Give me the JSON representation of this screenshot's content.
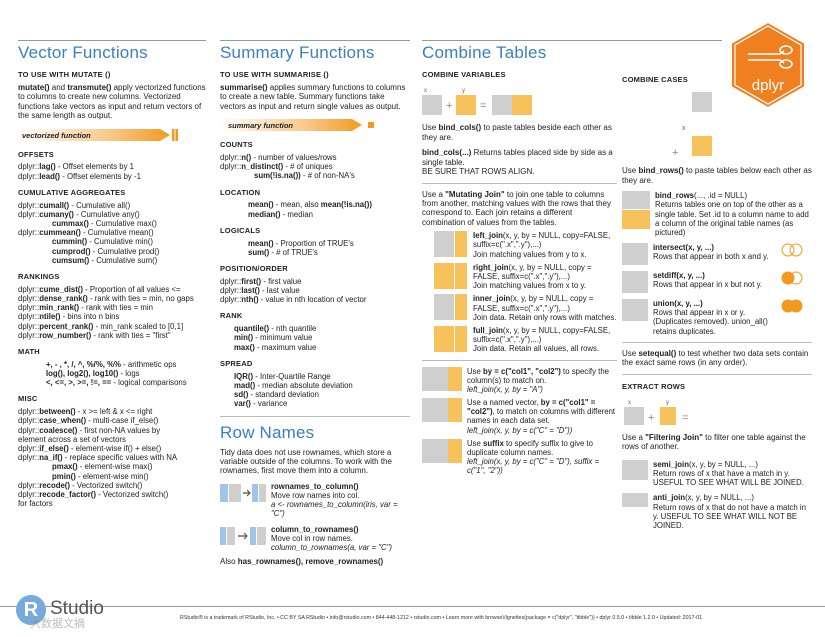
{
  "col1": {
    "title": "Vector Functions",
    "subtitle": "TO USE WITH MUTATE ()",
    "intro_b1": "mutate()",
    "intro_t1": " and ",
    "intro_b2": "transmute()",
    "intro_t2": " apply vectorized functions to columns to create new columns. Vectorized functions take vectors as input and return vectors of the same length as output.",
    "tag": "vectorized function",
    "offsets": {
      "head": "OFFSETS",
      "items": [
        {
          "fn": "lag()",
          "pre": "dplyr::",
          "desc": " - Offset elements by 1"
        },
        {
          "fn": "lead()",
          "pre": "dplyr::",
          "desc": " - Offset elements by -1"
        }
      ]
    },
    "cumulative": {
      "head": "CUMULATIVE AGGREGATES",
      "items": [
        {
          "pre": "dplyr::",
          "fn": "cumall()",
          "desc": " - Cumulative all()",
          "indent": 0
        },
        {
          "pre": "dplyr::",
          "fn": "cumany()",
          "desc": " - Cumulative any()",
          "indent": 0
        },
        {
          "pre": "",
          "fn": "cummax()",
          "desc": " - Cumulative max()",
          "indent": 2
        },
        {
          "pre": "dplyr::",
          "fn": "cummean()",
          "desc": " - Cumulative mean()",
          "indent": 0
        },
        {
          "pre": "",
          "fn": "cummin()",
          "desc": " - Cumulative min()",
          "indent": 2
        },
        {
          "pre": "",
          "fn": "cumprod()",
          "desc": " - Cumulative prod()",
          "indent": 2
        },
        {
          "pre": "",
          "fn": "cumsum()",
          "desc": " - Cumulative sum()",
          "indent": 2
        }
      ]
    },
    "rankings": {
      "head": "RANKINGS",
      "items": [
        {
          "pre": "dplyr::",
          "fn": "cume_dist()",
          "desc": " - Proportion of all values <="
        },
        {
          "pre": "dplyr::",
          "fn": "dense_rank()",
          "desc": " - rank with ties = min, no gaps"
        },
        {
          "pre": "dplyr::",
          "fn": "min_rank()",
          "desc": " - rank with ties = min"
        },
        {
          "pre": "dplyr::",
          "fn": "ntile()",
          "desc": " - bins into n bins"
        },
        {
          "pre": "dplyr::",
          "fn": "percent_rank()",
          "desc": " - min_rank scaled to [0,1]"
        },
        {
          "pre": "dplyr::",
          "fn": "row_number()",
          "desc": " - rank with ties = \"first\""
        }
      ]
    },
    "math": {
      "head": "MATH",
      "items": [
        {
          "fn": "+, - , *, /, ^, %/%, %%",
          "desc": " - arithmetic ops"
        },
        {
          "fn": "log(), log2(), log10()",
          "desc": " - logs"
        },
        {
          "fn": "<, <=, >, >=, !=, ==",
          "desc": " - logical comparisons"
        }
      ]
    },
    "misc": {
      "head": "MISC",
      "items": [
        {
          "pre": "dplyr::",
          "fn": "between()",
          "desc": " - x >= left & x <= right",
          "indent": 0
        },
        {
          "pre": "dplyr::",
          "fn": "case_when()",
          "desc": " - multi-case if_else()",
          "indent": 0
        },
        {
          "pre": "dplyr::",
          "fn": "coalesce()",
          "desc": " - first non-NA values by",
          "indent": 0
        },
        {
          "pre": "",
          "fn": "",
          "desc": "element  across a set of vectors",
          "indent": 0
        },
        {
          "pre": "dplyr::",
          "fn": "if_else()",
          "desc": " - element-wise if() + else()",
          "indent": 0
        },
        {
          "pre": "dplyr::",
          "fn": "na_if()",
          "desc": " - replace specific values with NA",
          "indent": 0
        },
        {
          "pre": "",
          "fn": "pmax()",
          "desc": " - element-wise max()",
          "indent": 2
        },
        {
          "pre": "",
          "fn": "pmin()",
          "desc": " - element-wise min()",
          "indent": 2
        },
        {
          "pre": "dplyr::",
          "fn": "recode()",
          "desc": " - Vectorized switch()",
          "indent": 0
        },
        {
          "pre": "dplyr::",
          "fn": "recode_factor()",
          "desc": " - Vectorized switch()",
          "indent": 0
        },
        {
          "pre": "",
          "fn": "",
          "desc": "for factors",
          "indent": 0
        }
      ]
    }
  },
  "col2": {
    "title": "Summary Functions",
    "subtitle": "TO USE WITH SUMMARISE ()",
    "intro_b1": "summarise()",
    "intro_t1": " applies summary functions to columns to create a new table. Summary functions take vectors as input and return single values as output.",
    "tag": "summary function",
    "counts": {
      "head": "COUNTS",
      "items": [
        {
          "pre": "dplyr::",
          "fn": "n()",
          "desc": " - number of values/rows",
          "indent": 0
        },
        {
          "pre": "dplyr::",
          "fn": "n_distinct()",
          "desc": " - # of uniques",
          "indent": 0
        },
        {
          "pre": "",
          "fn": "sum(!is.na())",
          "desc": " - # of non-NA's",
          "indent": 2
        }
      ]
    },
    "location": {
      "head": "LOCATION",
      "items": [
        {
          "pre": "",
          "fn": "mean()",
          "desc": " - mean, also ",
          "fn2": "mean(!is.na())",
          "indent": 1
        },
        {
          "pre": "",
          "fn": "median()",
          "desc": " - median",
          "indent": 1
        }
      ]
    },
    "logicals": {
      "head": "LOGICALS",
      "items": [
        {
          "pre": "",
          "fn": "mean()",
          "desc": " - Proportion of TRUE's",
          "indent": 1
        },
        {
          "pre": "",
          "fn": "sum()",
          "desc": " - # of TRUE's",
          "indent": 1
        }
      ]
    },
    "position": {
      "head": "POSITION/ORDER",
      "items": [
        {
          "pre": "dplyr::",
          "fn": "first()",
          "desc": " - first value"
        },
        {
          "pre": "dplyr::",
          "fn": "last()",
          "desc": " - last value"
        },
        {
          "pre": "dplyr::",
          "fn": "nth()",
          "desc": " - value in nth location of vector"
        }
      ]
    },
    "rank": {
      "head": "RANK",
      "items": [
        {
          "fn": "quantile()",
          "desc": " - nth quantile"
        },
        {
          "fn": "min()",
          "desc": " - minimum value"
        },
        {
          "fn": "max()",
          "desc": " - maximum value"
        }
      ]
    },
    "spread": {
      "head": "SPREAD",
      "items": [
        {
          "fn": "IQR()",
          "desc": " - Inter-Quartile Range"
        },
        {
          "fn": "mad()",
          "desc": " - median absolute deviation"
        },
        {
          "fn": "sd()",
          "desc": " - standard deviation"
        },
        {
          "fn": "var()",
          "desc": " - variance"
        }
      ]
    },
    "rownames": {
      "title": "Row Names",
      "intro": "Tidy data does not use rownames, which store a variable outside of the columns. To work with the rownames, first move them into a column.",
      "f1": "rownames_to_column()",
      "f1d": "Move row names into col.",
      "f1e": "a <- rownames_to_column(iris, var = \"C\")",
      "f2": "column_to_rownames()",
      "f2d": "Move col in row names.",
      "f2e": "column_to_rownames(a, var = \"C\")",
      "also_t": "Also ",
      "also_b": "has_rownames(), remove_rownames()"
    }
  },
  "col3": {
    "title": "Combine Tables",
    "combine_vars": "COMBINE VARIABLES",
    "bind_cols_t1": "Use ",
    "bind_cols_b": "bind_cols()",
    "bind_cols_t2": " to paste tables beside each other as they are.",
    "bind_cols2_b": "bind_cols(...)",
    "bind_cols2_t": " Returns tables placed side by side as a single table.",
    "bind_cols2_t2": "BE SURE THAT ROWS ALIGN.",
    "mut_join_t1": "Use a ",
    "mut_join_b": "\"Mutating Join\"",
    "mut_join_t2": " to join one table to columns from another, matching values with the rows that they correspond to. Each join retains a different combination of values from the tables.",
    "joins": [
      {
        "name": "left_join",
        "sig": "(x, y, by = NULL, copy=FALSE, suffix=c(\".x\",\".y\"),...)",
        "desc": "Join matching values from y to x."
      },
      {
        "name": "right_join",
        "sig": "(x, y, by = NULL, copy = FALSE, suffix=c(\".x\",\".y\"),...)",
        "desc": "Join matching values from x to y."
      },
      {
        "name": "inner_join",
        "sig": "(x, y, by = NULL, copy = FALSE, suffix=c(\".x\",\".y\"),...)",
        "desc": "Join data. Retain only rows with matches."
      },
      {
        "name": "full_join",
        "sig": "(x, y, by = NULL, copy=FALSE, suffix=c(\".x\",\".y\"),...)",
        "desc": "Join data. Retain all values, all rows."
      }
    ],
    "by1_t1": "Use ",
    "by1_b": "by = c(\"col1\", \"col2\")",
    "by1_t2": " to specify the column(s) to match on.",
    "by1_e": "left_join(x, y, by = \"A\")",
    "by2_t1": "Use a named vector, ",
    "by2_b": "by = c(\"col1\" = \"col2\")",
    "by2_t2": ", to match on columns with different names in each data set.",
    "by2_e": "left_join(x, y, by = c(\"C\" = \"D\"))",
    "suf_t1": "Use ",
    "suf_b": "suffix",
    "suf_t2": " to specify suffix to give to duplicate column names.",
    "suf_e": "left_join(x, y, by = c(\"C\" = \"D\"), suffix = c(\"1\", \"2\"))"
  },
  "col4": {
    "combine_cases": "COMBINE CASES",
    "bind_rows_t1": "Use ",
    "bind_rows_b": "bind_rows()",
    "bind_rows_t2": " to paste tables below each other as they are.",
    "br_b": "bind_rows",
    "br_sig": "(..., .id = NULL)",
    "br_desc": "Returns tables one on top of the other as a single table. Set .id to a column name to add a column of the original table names (as pictured)",
    "setops": [
      {
        "fn": "intersect(x, y, ...)",
        "desc": "Rows that appear in both x and y."
      },
      {
        "fn": "setdiff(x, y, ...)",
        "desc": "Rows that appear in x but not y."
      },
      {
        "fn": "union(x, y, ...)",
        "desc": "Rows that appear in x or y. (Duplicates removed). union_all() retains duplicates."
      }
    ],
    "setequal_t1": "Use ",
    "setequal_b": "setequal()",
    "setequal_t2": " to test whether two data sets contain the exact same rows (in any order).",
    "extract": "EXTRACT ROWS",
    "filt_t1": "Use a ",
    "filt_b": "\"Filtering Join\"",
    "filt_t2": " to filter one table against the rows of another.",
    "semi_b": "semi_join",
    "semi_sig": "(x, y, by = NULL, ...)",
    "semi_desc": "Return rows of x that have a match in y. USEFUL TO SEE WHAT WILL BE JOINED.",
    "anti_b": "anti_join",
    "anti_sig": "(x, y, by = NULL, ...)",
    "anti_desc": "Return rows of x that do not have a match in y. USEFUL TO SEE WHAT WILL NOT BE JOINED."
  },
  "logo": {
    "hex_text": "dplyr",
    "rstudio_r": "R",
    "rstudio_word": "Studio"
  },
  "footer": "RStudio® is a trademark of RStudio, Inc.  •  CC BY SA  RStudio  •  info@rstudio.com  •  844-448-1212  •  rstudio.com  •  Learn more with browseVignettes(package = c(\"dplyr\", \"tibble\"))  •  dplyr  0.5.0  •  tibble  1.2.0  •  Updated: 2017-01",
  "watermark": "大数据文摘",
  "colors": {
    "blue": "#3a7fc1",
    "orange": "#f39a1e",
    "gray": "#b3b3b3"
  }
}
